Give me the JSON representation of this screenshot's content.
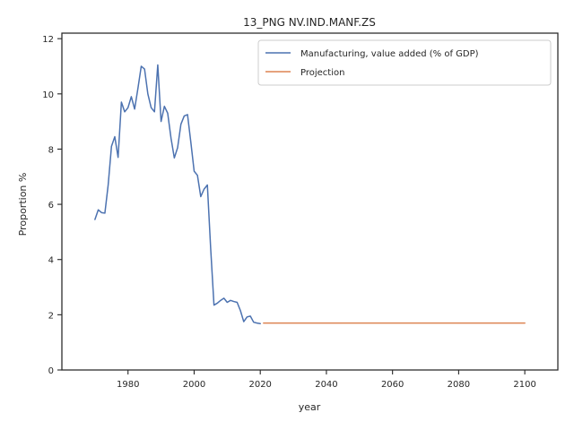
{
  "chart_data": {
    "type": "line",
    "title": "13_PNG NV.IND.MANF.ZS",
    "xlabel": "year",
    "ylabel": "Proportion %",
    "xlim": [
      1960,
      2110
    ],
    "ylim": [
      0,
      12.2
    ],
    "xticks": [
      1980,
      2000,
      2020,
      2040,
      2060,
      2080,
      2100
    ],
    "yticks": [
      0,
      2,
      4,
      6,
      8,
      10,
      12
    ],
    "grid": false,
    "legend_position": "top-right",
    "series": [
      {
        "name": "Manufacturing, value added (% of GDP)",
        "color": "#4c72b0",
        "x": [
          1970,
          1971,
          1972,
          1973,
          1974,
          1975,
          1976,
          1977,
          1978,
          1979,
          1980,
          1981,
          1982,
          1983,
          1984,
          1985,
          1986,
          1987,
          1988,
          1989,
          1990,
          1991,
          1992,
          1993,
          1994,
          1995,
          1996,
          1997,
          1998,
          1999,
          2000,
          2001,
          2002,
          2003,
          2004,
          2005,
          2006,
          2007,
          2008,
          2009,
          2010,
          2011,
          2012,
          2013,
          2014,
          2015,
          2016,
          2017,
          2018,
          2019,
          2020
        ],
        "y": [
          5.45,
          5.8,
          5.7,
          5.68,
          6.7,
          8.1,
          8.45,
          7.7,
          9.7,
          9.35,
          9.5,
          9.9,
          9.45,
          10.2,
          11.0,
          10.9,
          10.0,
          9.5,
          9.35,
          11.05,
          9.0,
          9.55,
          9.3,
          8.4,
          7.68,
          8.05,
          8.9,
          9.2,
          9.25,
          8.25,
          7.2,
          7.05,
          6.28,
          6.55,
          6.7,
          4.4,
          2.35,
          2.42,
          2.52,
          2.6,
          2.45,
          2.52,
          2.48,
          2.45,
          2.15,
          1.75,
          1.92,
          1.95,
          1.73,
          1.7,
          1.68
        ]
      },
      {
        "name": "Projection",
        "color": "#dd8452",
        "x": [
          2021,
          2100
        ],
        "y": [
          1.7,
          1.7
        ]
      }
    ]
  }
}
